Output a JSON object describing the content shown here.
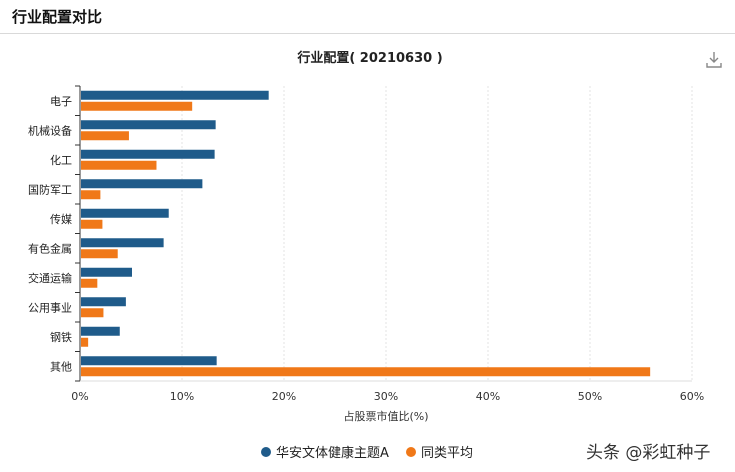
{
  "header": {
    "title": "行业配置对比"
  },
  "download_icon": "download-icon",
  "watermark": "头条 @彩虹种子",
  "chart_data": {
    "type": "bar",
    "orientation": "horizontal",
    "title": "行业配置( 20210630 )",
    "xlabel": "占股票市值比(%)",
    "ylabel": "",
    "xlim": [
      0,
      60
    ],
    "xticks": [
      "0%",
      "10%",
      "20%",
      "30%",
      "40%",
      "50%",
      "60%"
    ],
    "grid": "vertical-dashed",
    "legend_position": "bottom",
    "categories": [
      "电子",
      "机械设备",
      "化工",
      "国防军工",
      "传媒",
      "有色金属",
      "交通运输",
      "公用事业",
      "钢铁",
      "其他"
    ],
    "series": [
      {
        "name": "华安文体健康主题A",
        "color": "#1f5b8a",
        "values": [
          18.4,
          13.2,
          13.1,
          11.9,
          8.6,
          8.1,
          5.0,
          4.4,
          3.8,
          13.3
        ]
      },
      {
        "name": "同类平均",
        "color": "#f07818",
        "values": [
          10.9,
          4.7,
          7.4,
          1.9,
          2.1,
          3.6,
          1.6,
          2.2,
          0.7,
          55.8
        ]
      }
    ]
  }
}
